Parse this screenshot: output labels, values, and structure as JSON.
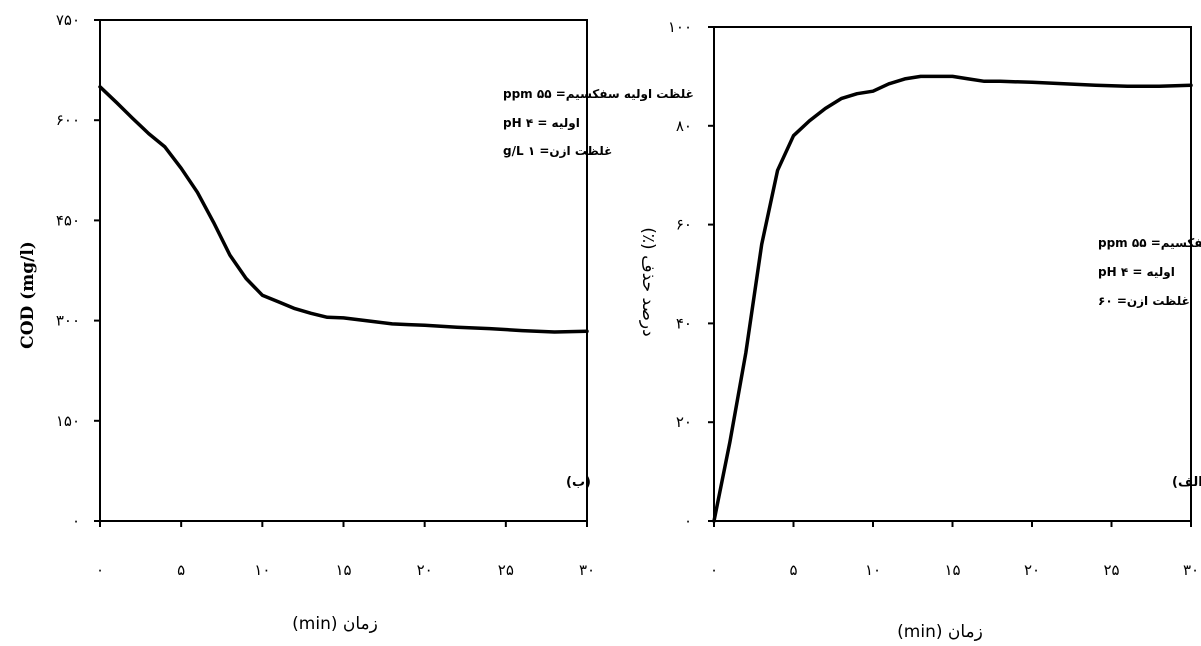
{
  "chart_data": [
    {
      "type": "line",
      "panel_label": "(ب)",
      "xlabel": "زمان (min)",
      "ylabel": "COD (mg/l)",
      "xlim": [
        0,
        30
      ],
      "ylim": [
        0,
        750
      ],
      "x_ticks": [
        "۰",
        "۵",
        "۱۰",
        "۱۵",
        "۲۰",
        "۲۵",
        "۳۰"
      ],
      "y_ticks": [
        "۰",
        "۱۵۰",
        "۳۰۰",
        "۴۵۰",
        "۶۰۰",
        "۷۵۰"
      ],
      "annotations": [
        "غلظت اولیه سفکسیم= ۵۵ ppm",
        "pH اولیه = ۴",
        "غلظت ازن= ۱ g/L"
      ],
      "color": "#000000",
      "grid": false,
      "legend": "none",
      "x": [
        0,
        1,
        2,
        3,
        4,
        5,
        6,
        7,
        8,
        9,
        10,
        11,
        12,
        13,
        14,
        15,
        16,
        17,
        18,
        19,
        20,
        22,
        24,
        26,
        28,
        30
      ],
      "y": [
        650,
        627,
        603,
        580,
        560,
        528,
        492,
        447,
        398,
        363,
        338,
        328,
        318,
        311,
        305,
        304,
        301,
        298,
        295,
        294,
        293,
        290,
        288,
        285,
        283,
        284
      ]
    },
    {
      "type": "line",
      "panel_label": "(الف)",
      "xlabel": "زمان (min)",
      "ylabel": "درصد حذف (٪)",
      "xlim": [
        0,
        30
      ],
      "ylim": [
        0,
        100
      ],
      "x_ticks": [
        "۰",
        "۵",
        "۱۰",
        "۱۵",
        "۲۰",
        "۲۵",
        "۳۰"
      ],
      "y_ticks": [
        "۰",
        "۲۰",
        "۴۰",
        "۶۰",
        "۸۰",
        "۱۰۰"
      ],
      "annotations": [
        "غلظت اولیه سفکسیم= ۵۵ ppm",
        "pH اولیه = ۴",
        "غلظت ازن= ۶۰"
      ],
      "color": "#000000",
      "grid": false,
      "legend": "none",
      "x": [
        0,
        1,
        2,
        3,
        4,
        5,
        6,
        7,
        8,
        9,
        10,
        11,
        12,
        13,
        14,
        15,
        16,
        17,
        18,
        20,
        22,
        24,
        26,
        28,
        30
      ],
      "y": [
        0,
        16,
        34,
        56,
        71,
        78,
        81,
        83.5,
        85.5,
        86.5,
        87,
        88.5,
        89.5,
        90,
        90,
        90,
        89.5,
        89,
        89,
        88.8,
        88.5,
        88.2,
        88,
        88,
        88.2
      ]
    }
  ]
}
